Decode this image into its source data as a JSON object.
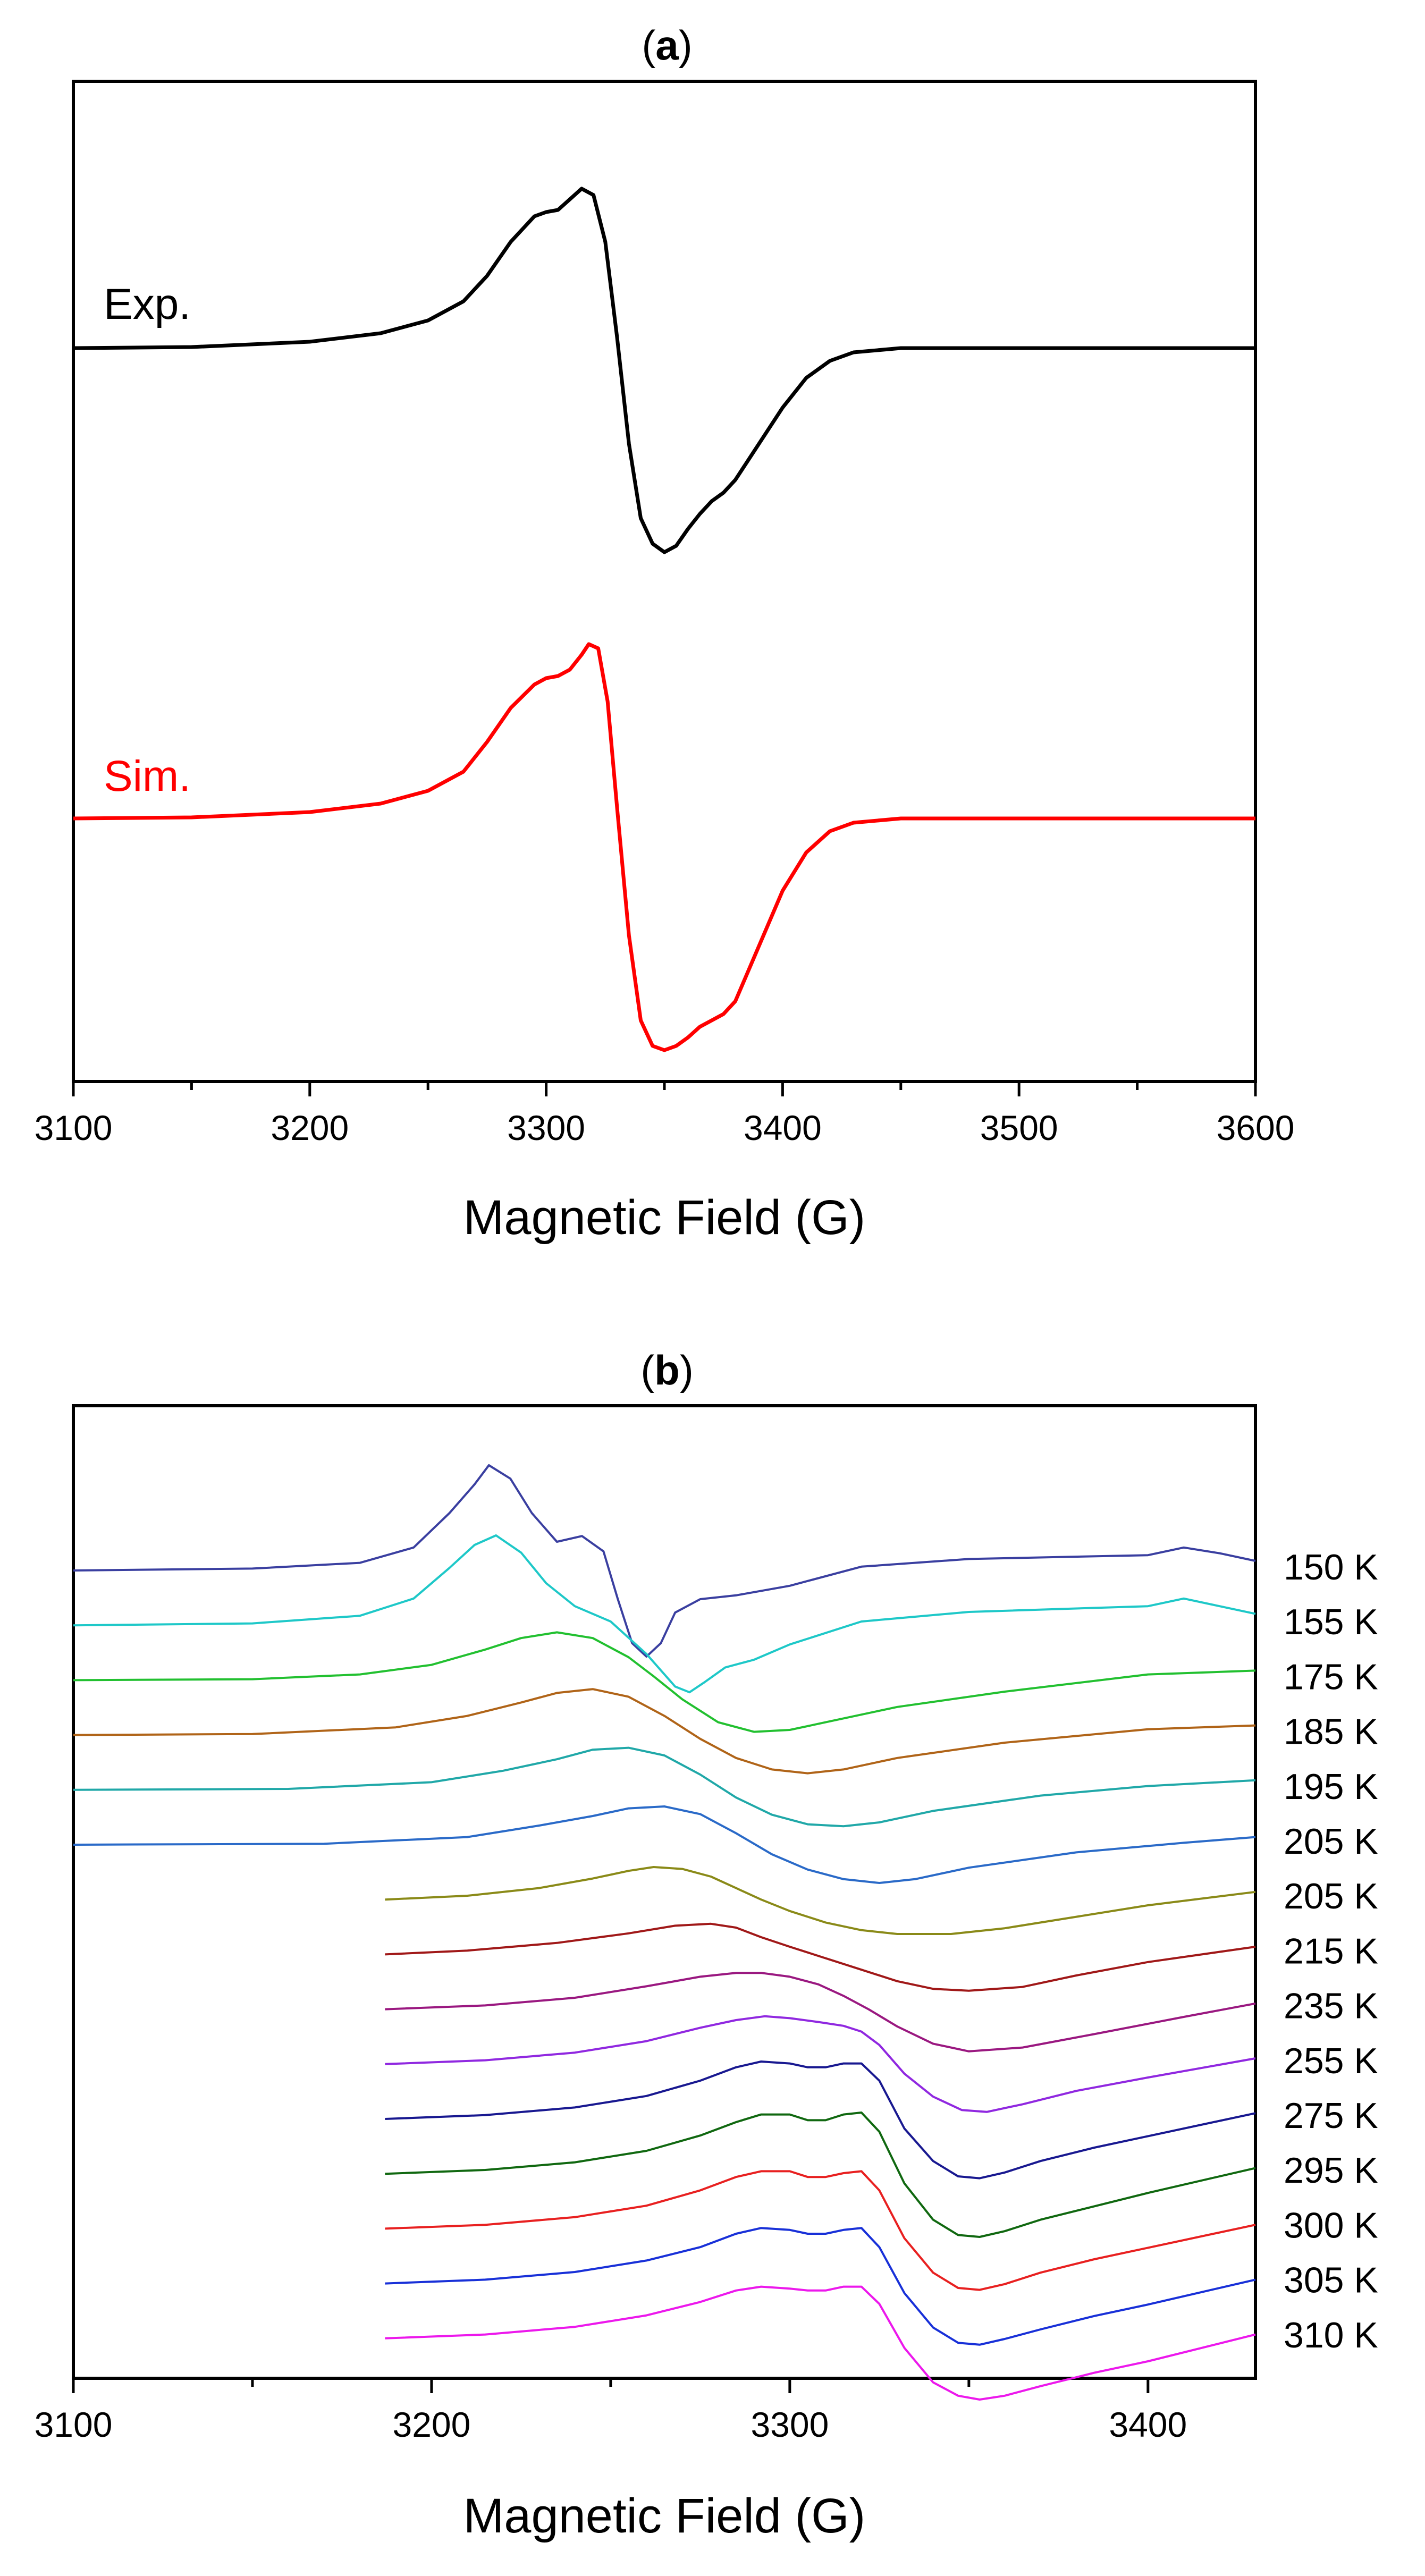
{
  "chart_data": [
    {
      "panel": "(a)",
      "type": "line",
      "xlabel": "Magnetic Field (G)",
      "ylabel": "",
      "xlim": [
        3100,
        3600
      ],
      "xticks": [
        "3100",
        "3200",
        "3300",
        "3400",
        "3500",
        "3600"
      ],
      "grid": false,
      "series": [
        {
          "name": "Exp.",
          "color": "#000000",
          "x": [
            3100,
            3150,
            3200,
            3230,
            3250,
            3265,
            3275,
            3285,
            3295,
            3300,
            3305,
            3310,
            3315,
            3320,
            3325,
            3330,
            3335,
            3340,
            3345,
            3350,
            3355,
            3360,
            3365,
            3370,
            3375,
            3380,
            3390,
            3400,
            3410,
            3420,
            3430,
            3450,
            3500,
            3550,
            3600
          ],
          "y": [
            0,
            0.005,
            0.03,
            0.07,
            0.13,
            0.22,
            0.34,
            0.5,
            0.62,
            0.64,
            0.65,
            0.7,
            0.75,
            0.72,
            0.5,
            0.05,
            -0.45,
            -0.8,
            -0.92,
            -0.96,
            -0.93,
            -0.85,
            -0.78,
            -0.72,
            -0.68,
            -0.62,
            -0.45,
            -0.28,
            -0.14,
            -0.06,
            -0.02,
            0,
            0,
            0,
            0
          ]
        },
        {
          "name": "Sim.",
          "color": "#ff0000",
          "x": [
            3100,
            3150,
            3200,
            3230,
            3250,
            3265,
            3275,
            3285,
            3295,
            3300,
            3305,
            3310,
            3315,
            3318,
            3322,
            3326,
            3330,
            3335,
            3340,
            3345,
            3350,
            3355,
            3360,
            3365,
            3370,
            3375,
            3380,
            3390,
            3400,
            3410,
            3420,
            3430,
            3450,
            3500,
            3600
          ],
          "y": [
            0,
            0.005,
            0.03,
            0.07,
            0.13,
            0.22,
            0.36,
            0.52,
            0.63,
            0.66,
            0.67,
            0.7,
            0.77,
            0.82,
            0.8,
            0.55,
            0.05,
            -0.55,
            -0.95,
            -1.07,
            -1.09,
            -1.07,
            -1.03,
            -0.98,
            -0.95,
            -0.92,
            -0.86,
            -0.6,
            -0.34,
            -0.16,
            -0.06,
            -0.02,
            0,
            0,
            0
          ]
        }
      ]
    },
    {
      "panel": "(b)",
      "type": "line",
      "xlabel": "Magnetic Field (G)",
      "ylabel": "",
      "xlim": [
        3100,
        3430
      ],
      "xticks": [
        "3100",
        "3200",
        "3300",
        "3400"
      ],
      "grid": false,
      "series": [
        {
          "name": "150 K",
          "color": "#3a3fa0",
          "x": [
            3100,
            3150,
            3180,
            3195,
            3205,
            3212,
            3216,
            3222,
            3228,
            3235,
            3242,
            3248,
            3252,
            3256,
            3260,
            3264,
            3268,
            3275,
            3285,
            3300,
            3320,
            3350,
            3400,
            3410,
            3420,
            3430
          ],
          "y": [
            0,
            0.01,
            0.04,
            0.12,
            0.3,
            0.45,
            0.55,
            0.48,
            0.3,
            0.15,
            0.18,
            0.1,
            -0.15,
            -0.38,
            -0.45,
            -0.38,
            -0.22,
            -0.15,
            -0.13,
            -0.08,
            0.02,
            0.06,
            0.08,
            0.12,
            0.09,
            0.05
          ]
        },
        {
          "name": "155 K",
          "color": "#1ec8c8",
          "x": [
            3100,
            3150,
            3180,
            3195,
            3205,
            3212,
            3218,
            3225,
            3232,
            3240,
            3250,
            3260,
            3268,
            3272,
            3276,
            3282,
            3290,
            3300,
            3320,
            3350,
            3400,
            3410,
            3420,
            3430
          ],
          "y": [
            0,
            0.01,
            0.05,
            0.14,
            0.3,
            0.42,
            0.47,
            0.38,
            0.22,
            0.1,
            0.02,
            -0.15,
            -0.32,
            -0.35,
            -0.3,
            -0.22,
            -0.18,
            -0.1,
            0.02,
            0.07,
            0.1,
            0.14,
            0.1,
            0.06
          ]
        },
        {
          "name": "175 K",
          "color": "#22c030",
          "x": [
            3100,
            3150,
            3180,
            3200,
            3215,
            3225,
            3235,
            3245,
            3255,
            3262,
            3270,
            3280,
            3290,
            3300,
            3310,
            3330,
            3360,
            3400,
            3430
          ],
          "y": [
            0,
            0.005,
            0.03,
            0.08,
            0.16,
            0.22,
            0.25,
            0.22,
            0.12,
            0.02,
            -0.1,
            -0.22,
            -0.27,
            -0.26,
            -0.22,
            -0.14,
            -0.06,
            0.03,
            0.05
          ]
        },
        {
          "name": "185 K",
          "color": "#b06418",
          "x": [
            3100,
            3150,
            3190,
            3210,
            3225,
            3235,
            3245,
            3255,
            3265,
            3275,
            3285,
            3295,
            3305,
            3315,
            3330,
            3360,
            3400,
            3430
          ],
          "y": [
            0,
            0.005,
            0.04,
            0.1,
            0.17,
            0.22,
            0.24,
            0.2,
            0.1,
            -0.02,
            -0.12,
            -0.18,
            -0.2,
            -0.18,
            -0.12,
            -0.04,
            0.03,
            0.05
          ]
        },
        {
          "name": "195 K",
          "color": "#20a8a8",
          "x": [
            3100,
            3160,
            3200,
            3220,
            3235,
            3245,
            3255,
            3265,
            3275,
            3285,
            3295,
            3305,
            3315,
            3325,
            3340,
            3370,
            3400,
            3430
          ],
          "y": [
            0,
            0.005,
            0.04,
            0.1,
            0.16,
            0.21,
            0.22,
            0.18,
            0.08,
            -0.04,
            -0.13,
            -0.18,
            -0.19,
            -0.17,
            -0.11,
            -0.03,
            0.02,
            0.05
          ]
        },
        {
          "name": "205 K",
          "color": "#2a6ac8",
          "x": [
            3100,
            3170,
            3210,
            3230,
            3245,
            3255,
            3265,
            3275,
            3285,
            3295,
            3305,
            3315,
            3325,
            3335,
            3350,
            3380,
            3410,
            3430
          ],
          "y": [
            0,
            0.005,
            0.04,
            0.1,
            0.15,
            0.19,
            0.2,
            0.16,
            0.06,
            -0.05,
            -0.13,
            -0.18,
            -0.2,
            -0.18,
            -0.12,
            -0.04,
            0.01,
            0.04
          ]
        },
        {
          "name": "205 K",
          "color": "#8a8a18",
          "x": [
            3187,
            3210,
            3230,
            3245,
            3255,
            3262,
            3270,
            3278,
            3285,
            3292,
            3300,
            3310,
            3320,
            3330,
            3345,
            3360,
            3380,
            3400,
            3430
          ],
          "y": [
            0,
            0.02,
            0.06,
            0.11,
            0.15,
            0.17,
            0.16,
            0.12,
            0.06,
            0.0,
            -0.06,
            -0.12,
            -0.16,
            -0.18,
            -0.18,
            -0.15,
            -0.09,
            -0.03,
            0.04
          ]
        },
        {
          "name": "215 K",
          "color": "#a01818",
          "x": [
            3187,
            3210,
            3235,
            3255,
            3268,
            3278,
            3285,
            3292,
            3300,
            3310,
            3320,
            3330,
            3340,
            3350,
            3365,
            3380,
            3400,
            3430
          ],
          "y": [
            0,
            0.02,
            0.06,
            0.11,
            0.15,
            0.16,
            0.14,
            0.09,
            0.04,
            -0.02,
            -0.08,
            -0.14,
            -0.18,
            -0.19,
            -0.17,
            -0.11,
            -0.04,
            0.04
          ]
        },
        {
          "name": "235 K",
          "color": "#9a1880",
          "x": [
            3187,
            3215,
            3240,
            3260,
            3275,
            3285,
            3292,
            3300,
            3308,
            3315,
            3322,
            3330,
            3340,
            3350,
            3365,
            3385,
            3410,
            3430
          ],
          "y": [
            0,
            0.02,
            0.06,
            0.12,
            0.17,
            0.19,
            0.19,
            0.17,
            0.13,
            0.07,
            0.0,
            -0.09,
            -0.18,
            -0.22,
            -0.2,
            -0.13,
            -0.04,
            0.03
          ]
        },
        {
          "name": "255 K",
          "color": "#9028e0",
          "x": [
            3187,
            3215,
            3240,
            3260,
            3275,
            3285,
            3293,
            3300,
            3308,
            3315,
            3320,
            3325,
            3332,
            3340,
            3348,
            3355,
            3365,
            3380,
            3400,
            3430
          ],
          "y": [
            0,
            0.02,
            0.06,
            0.12,
            0.19,
            0.23,
            0.25,
            0.24,
            0.22,
            0.2,
            0.17,
            0.1,
            -0.05,
            -0.17,
            -0.24,
            -0.25,
            -0.21,
            -0.14,
            -0.07,
            0.03
          ]
        },
        {
          "name": "275 K",
          "color": "#181890",
          "x": [
            3187,
            3215,
            3240,
            3260,
            3275,
            3285,
            3292,
            3300,
            3305,
            3310,
            3315,
            3320,
            3325,
            3332,
            3340,
            3347,
            3353,
            3360,
            3370,
            3385,
            3400,
            3430
          ],
          "y": [
            0,
            0.02,
            0.06,
            0.12,
            0.2,
            0.27,
            0.3,
            0.29,
            0.27,
            0.27,
            0.29,
            0.29,
            0.2,
            -0.05,
            -0.22,
            -0.3,
            -0.31,
            -0.28,
            -0.22,
            -0.15,
            -0.09,
            0.03
          ]
        },
        {
          "name": "295 K",
          "color": "#106810",
          "x": [
            3187,
            3215,
            3240,
            3260,
            3275,
            3285,
            3292,
            3300,
            3305,
            3310,
            3315,
            3320,
            3325,
            3332,
            3340,
            3347,
            3353,
            3360,
            3370,
            3385,
            3400,
            3430
          ],
          "y": [
            0,
            0.02,
            0.06,
            0.12,
            0.2,
            0.27,
            0.31,
            0.31,
            0.28,
            0.28,
            0.31,
            0.32,
            0.22,
            -0.05,
            -0.24,
            -0.32,
            -0.33,
            -0.3,
            -0.24,
            -0.17,
            -0.1,
            0.03
          ]
        },
        {
          "name": "300 K",
          "color": "#e82020",
          "x": [
            3187,
            3215,
            3240,
            3260,
            3275,
            3285,
            3292,
            3300,
            3305,
            3310,
            3315,
            3320,
            3325,
            3332,
            3340,
            3347,
            3353,
            3360,
            3370,
            3385,
            3400,
            3430
          ],
          "y": [
            0,
            0.02,
            0.06,
            0.12,
            0.2,
            0.27,
            0.3,
            0.3,
            0.27,
            0.27,
            0.29,
            0.3,
            0.2,
            -0.05,
            -0.23,
            -0.31,
            -0.32,
            -0.29,
            -0.23,
            -0.16,
            -0.1,
            0.02
          ]
        },
        {
          "name": "305 K",
          "color": "#1830d8",
          "x": [
            3187,
            3215,
            3240,
            3260,
            3275,
            3285,
            3292,
            3300,
            3305,
            3310,
            3315,
            3320,
            3325,
            3332,
            3340,
            3347,
            3353,
            3360,
            3370,
            3385,
            3400,
            3430
          ],
          "y": [
            0,
            0.02,
            0.06,
            0.12,
            0.19,
            0.26,
            0.29,
            0.28,
            0.26,
            0.26,
            0.28,
            0.29,
            0.19,
            -0.05,
            -0.23,
            -0.31,
            -0.32,
            -0.29,
            -0.24,
            -0.17,
            -0.11,
            0.02
          ]
        },
        {
          "name": "310 K",
          "color": "#ec18ec",
          "x": [
            3187,
            3215,
            3240,
            3260,
            3275,
            3285,
            3292,
            3300,
            3305,
            3310,
            3315,
            3320,
            3325,
            3332,
            3340,
            3347,
            3353,
            3360,
            3370,
            3385,
            3400,
            3430
          ],
          "y": [
            0,
            0.02,
            0.06,
            0.12,
            0.19,
            0.25,
            0.27,
            0.26,
            0.25,
            0.25,
            0.27,
            0.27,
            0.18,
            -0.05,
            -0.23,
            -0.3,
            -0.32,
            -0.3,
            -0.25,
            -0.18,
            -0.12,
            0.02
          ]
        }
      ]
    }
  ]
}
